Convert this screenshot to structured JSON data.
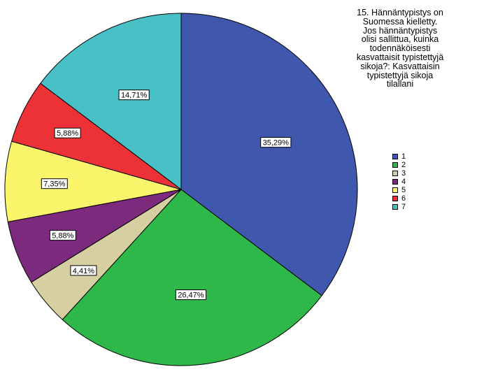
{
  "chart_data": {
    "type": "pie",
    "title": "15. Hännäntypistys on Suomessa kielletty. Jos hännäntypistys olisi sallittua, kuinka todennäköisesti kasvattaisit typistettyjä sikoja?: Kasvattaisin typistettyjä sikoja tilallani",
    "legend_position": "right",
    "start_angle": "top",
    "direction": "clockwise",
    "slices": [
      {
        "label": "1",
        "value": 35.29,
        "value_label": "35,29%",
        "color": "#3F58AE"
      },
      {
        "label": "2",
        "value": 26.47,
        "value_label": "26,47%",
        "color": "#2EB84A"
      },
      {
        "label": "3",
        "value": 4.41,
        "value_label": "4,41%",
        "color": "#D6CFA1"
      },
      {
        "label": "4",
        "value": 5.88,
        "value_label": "5,88%",
        "color": "#7B2A7E"
      },
      {
        "label": "5",
        "value": 7.35,
        "value_label": "7,35%",
        "color": "#FBF56B"
      },
      {
        "label": "6",
        "value": 5.88,
        "value_label": "5,88%",
        "color": "#EC3137"
      },
      {
        "label": "7",
        "value": 14.71,
        "value_label": "14,71%",
        "color": "#48C0C6"
      }
    ]
  }
}
